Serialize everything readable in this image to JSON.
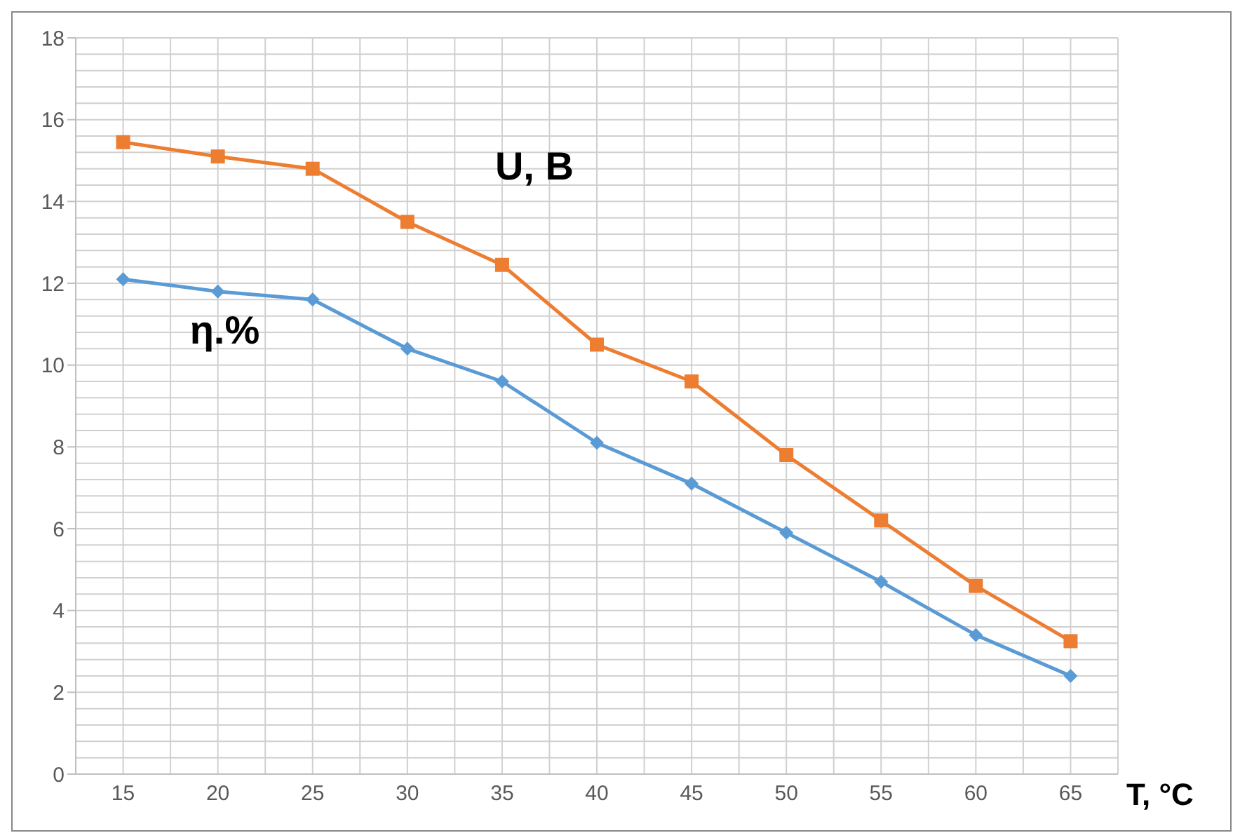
{
  "chart_data": {
    "type": "line",
    "xlabel": "T, °C",
    "categories": [
      "15",
      "20",
      "25",
      "30",
      "35",
      "40",
      "45",
      "50",
      "55",
      "60",
      "65"
    ],
    "series": [
      {
        "name": "U, B",
        "color": "#ed7d31",
        "marker": "square",
        "values": [
          15.45,
          15.1,
          14.8,
          13.5,
          12.45,
          10.5,
          9.6,
          7.8,
          6.2,
          4.6,
          3.25
        ]
      },
      {
        "name": "η.%",
        "color": "#5b9bd5",
        "marker": "diamond",
        "values": [
          12.1,
          11.8,
          11.6,
          10.4,
          9.6,
          8.1,
          7.1,
          5.9,
          4.7,
          3.4,
          2.4
        ]
      }
    ],
    "ylim": [
      0,
      18
    ],
    "yticks": [
      0,
      2,
      4,
      6,
      8,
      10,
      12,
      14,
      16,
      18
    ],
    "grid": true,
    "legend": false
  }
}
